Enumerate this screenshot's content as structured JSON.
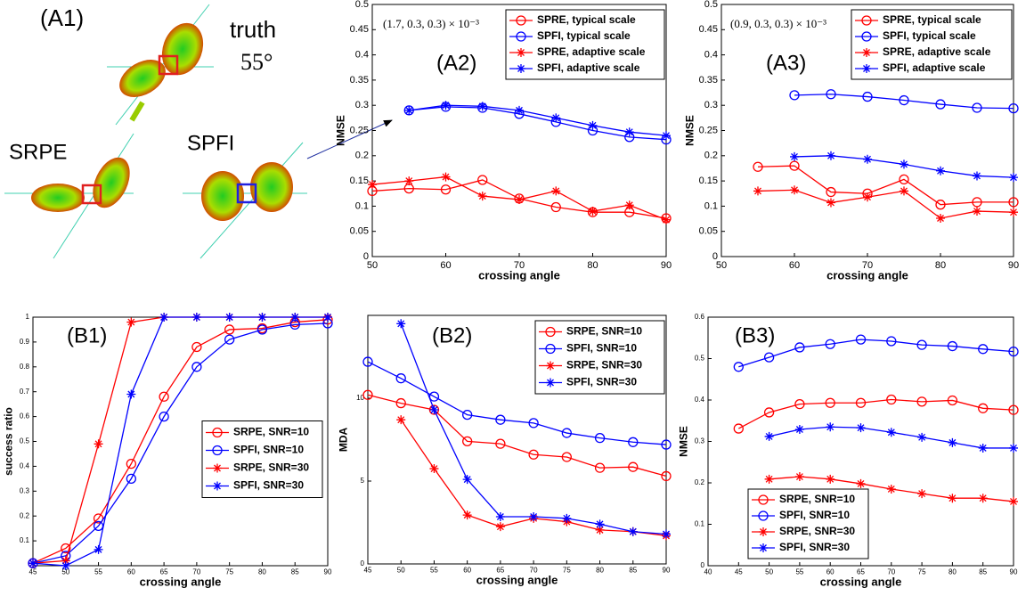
{
  "figure": {
    "label": "(A1)",
    "truth": "truth",
    "angle": "55°",
    "left": "SRPE",
    "right": "SPFI"
  },
  "chart_data": [
    {
      "type": "line",
      "label": "(A2)",
      "annotation": "(1.7, 0.3, 0.3) × 10⁻³",
      "xlabel": "crossing angle",
      "ylabel": "NMSE",
      "legend": "upper right",
      "x": [
        50,
        55,
        60,
        65,
        70,
        75,
        80,
        85,
        90
      ],
      "xlim": [
        50,
        90
      ],
      "xticks": [
        50,
        60,
        70,
        80,
        90
      ],
      "ylim": [
        0,
        0.5
      ],
      "yticks": [
        0,
        0.05,
        0.1,
        0.15,
        0.2,
        0.25,
        0.3,
        0.35,
        0.4,
        0.45,
        0.5
      ],
      "series": [
        {
          "name": "SPRE, typical scale",
          "color": "#ff0000",
          "marker": "circle",
          "values": [
            0.13,
            0.135,
            0.133,
            0.152,
            0.115,
            0.098,
            0.088,
            0.088,
            0.076
          ]
        },
        {
          "name": "SPFI, typical scale",
          "color": "#0000ff",
          "marker": "circle",
          "values": [
            null,
            0.29,
            0.297,
            0.295,
            0.283,
            0.267,
            0.25,
            0.237,
            0.232
          ]
        },
        {
          "name": "SPRE, adaptive scale",
          "color": "#ff0000",
          "marker": "star",
          "values": [
            0.143,
            0.15,
            0.158,
            0.12,
            0.113,
            0.13,
            0.09,
            0.102,
            0.073
          ]
        },
        {
          "name": "SPFI, adaptive scale",
          "color": "#0000ff",
          "marker": "star",
          "values": [
            null,
            0.29,
            0.3,
            0.298,
            0.29,
            0.275,
            0.26,
            0.247,
            0.24
          ]
        }
      ]
    },
    {
      "type": "line",
      "label": "(A3)",
      "annotation": "(0.9, 0.3, 0.3) × 10⁻³",
      "xlabel": "crossing angle",
      "ylabel": "NMSE",
      "legend": "upper right",
      "x": [
        50,
        55,
        60,
        65,
        70,
        75,
        80,
        85,
        90
      ],
      "xlim": [
        50,
        90
      ],
      "xticks": [
        50,
        60,
        70,
        80,
        90
      ],
      "ylim": [
        0,
        0.5
      ],
      "yticks": [
        0,
        0.05,
        0.1,
        0.15,
        0.2,
        0.25,
        0.3,
        0.35,
        0.4,
        0.45,
        0.5
      ],
      "series": [
        {
          "name": "SPRE, typical scale",
          "color": "#ff0000",
          "marker": "circle",
          "values": [
            null,
            0.178,
            0.18,
            0.128,
            0.125,
            0.153,
            0.103,
            0.108,
            0.108
          ]
        },
        {
          "name": "SPFI, typical scale",
          "color": "#0000ff",
          "marker": "circle",
          "values": [
            null,
            null,
            0.32,
            0.322,
            0.317,
            0.31,
            0.302,
            0.295,
            0.294
          ]
        },
        {
          "name": "SPRE, adaptive scale",
          "color": "#ff0000",
          "marker": "star",
          "values": [
            null,
            0.13,
            0.132,
            0.107,
            0.118,
            0.13,
            0.076,
            0.09,
            0.088
          ]
        },
        {
          "name": "SPFI, adaptive scale",
          "color": "#0000ff",
          "marker": "star",
          "values": [
            null,
            null,
            0.198,
            0.2,
            0.193,
            0.183,
            0.17,
            0.16,
            0.157
          ]
        }
      ]
    },
    {
      "type": "line",
      "label": "(B1)",
      "xlabel": "crossing angle",
      "ylabel": "success ratio",
      "legend": "center right",
      "x": [
        45,
        50,
        55,
        60,
        65,
        70,
        75,
        80,
        85,
        90
      ],
      "xlim": [
        45,
        90
      ],
      "xticks": [
        45,
        50,
        55,
        60,
        65,
        70,
        75,
        80,
        85,
        90
      ],
      "ylim": [
        0,
        1
      ],
      "yticks": [
        0.1,
        0.2,
        0.3,
        0.4,
        0.5,
        0.6,
        0.7,
        0.8,
        0.9,
        1
      ],
      "series": [
        {
          "name": "SRPE, SNR=10",
          "color": "#ff0000",
          "marker": "circle",
          "values": [
            0.01,
            0.07,
            0.19,
            0.41,
            0.68,
            0.88,
            0.95,
            0.955,
            0.98,
            0.99
          ]
        },
        {
          "name": "SPFI, SNR=10",
          "color": "#0000ff",
          "marker": "circle",
          "values": [
            0.01,
            0.04,
            0.16,
            0.35,
            0.6,
            0.8,
            0.91,
            0.95,
            0.97,
            0.975
          ]
        },
        {
          "name": "SRPE, SNR=30",
          "color": "#ff0000",
          "marker": "star",
          "values": [
            0.01,
            0.02,
            0.49,
            0.98,
            1,
            1,
            1,
            1,
            1,
            1
          ]
        },
        {
          "name": "SPFI, SNR=30",
          "color": "#0000ff",
          "marker": "star",
          "values": [
            0.01,
            0,
            0.065,
            0.69,
            1,
            1,
            1,
            1,
            1,
            1
          ]
        }
      ]
    },
    {
      "type": "line",
      "label": "(B2)",
      "xlabel": "crossing angle",
      "ylabel": "MDA",
      "legend": "upper right",
      "x": [
        45,
        50,
        55,
        60,
        65,
        70,
        75,
        80,
        85,
        90
      ],
      "xlim": [
        45,
        90
      ],
      "xticks": [
        45,
        50,
        55,
        60,
        65,
        70,
        75,
        80,
        85,
        90
      ],
      "ylim": [
        0,
        15
      ],
      "yticks": [
        0,
        5,
        10
      ],
      "series": [
        {
          "name": "SRPE, SNR=10",
          "color": "#ff0000",
          "marker": "circle",
          "values": [
            10.2,
            9.7,
            9.3,
            7.4,
            7.25,
            6.6,
            6.45,
            5.8,
            5.85,
            5.3
          ]
        },
        {
          "name": "SPFI, SNR=10",
          "color": "#0000ff",
          "marker": "circle",
          "values": [
            12.2,
            11.2,
            10.1,
            9,
            8.7,
            8.5,
            7.9,
            7.6,
            7.35,
            7.2
          ]
        },
        {
          "name": "SRPE, SNR=30",
          "color": "#ff0000",
          "marker": "star",
          "values": [
            null,
            8.7,
            5.75,
            2.95,
            2.25,
            2.75,
            2.55,
            2.05,
            1.95,
            1.7
          ]
        },
        {
          "name": "SPFI, SNR=30",
          "color": "#0000ff",
          "marker": "star",
          "values": [
            null,
            14.5,
            9.3,
            5.1,
            2.85,
            2.85,
            2.75,
            2.4,
            1.95,
            1.8
          ]
        }
      ]
    },
    {
      "type": "line",
      "label": "(B3)",
      "xlabel": "crossing angle",
      "ylabel": "NMSE",
      "legend": "lower left",
      "x": [
        45,
        50,
        55,
        60,
        65,
        70,
        75,
        80,
        85,
        90
      ],
      "xlim": [
        40,
        90
      ],
      "xticks": [
        40,
        45,
        50,
        55,
        60,
        65,
        70,
        75,
        80,
        85,
        90
      ],
      "ylim": [
        0,
        0.6
      ],
      "yticks": [
        0,
        0.1,
        0.2,
        0.3,
        0.4,
        0.5,
        0.6
      ],
      "series": [
        {
          "name": "SRPE, SNR=10",
          "color": "#ff0000",
          "marker": "circle",
          "values": [
            0.331,
            0.37,
            0.39,
            0.393,
            0.393,
            0.401,
            0.396,
            0.399,
            0.38,
            0.376
          ]
        },
        {
          "name": "SPFI, SNR=10",
          "color": "#0000ff",
          "marker": "circle",
          "values": [
            0.48,
            0.503,
            0.527,
            0.535,
            0.546,
            0.542,
            0.533,
            0.53,
            0.523,
            0.517
          ]
        },
        {
          "name": "SRPE, SNR=30",
          "color": "#ff0000",
          "marker": "star",
          "values": [
            null,
            0.209,
            0.215,
            0.209,
            0.198,
            0.185,
            0.174,
            0.163,
            0.163,
            0.155
          ]
        },
        {
          "name": "SPFI, SNR=30",
          "color": "#0000ff",
          "marker": "star",
          "values": [
            null,
            0.312,
            0.329,
            0.335,
            0.333,
            0.322,
            0.31,
            0.297,
            0.284,
            0.284
          ]
        }
      ]
    }
  ]
}
